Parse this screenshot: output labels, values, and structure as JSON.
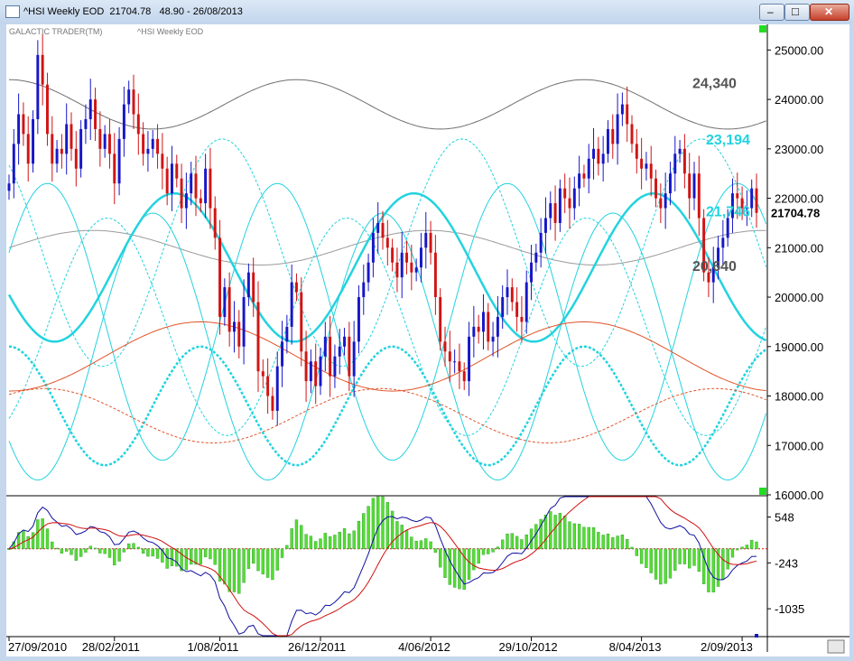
{
  "window": {
    "title": "^HSI Weekly EOD  21704.78   48.90 - 26/08/2013",
    "minimize_glyph": "–",
    "maximize_glyph": "□",
    "close_glyph": "✕"
  },
  "chart_data": {
    "type": "candlestick",
    "header": {
      "brand": "GALACTIC TRADER(TM)",
      "symbol": "^HSI Weekly EOD"
    },
    "last_price_label": "21704.78",
    "ylim": [
      16000,
      25500
    ],
    "yticks": [
      "25000.00",
      "24000.00",
      "23000.00",
      "22000.00",
      "21000.00",
      "20000.00",
      "19000.00",
      "18000.00",
      "17000.00",
      "16000.00"
    ],
    "ytick_values": [
      25000,
      24000,
      23000,
      22000,
      21000,
      20000,
      19000,
      18000,
      17000,
      16000
    ],
    "xticks": [
      "27/09/2010",
      "28/02/2011",
      "1/08/2011",
      "26/12/2011",
      "4/06/2012",
      "29/10/2012",
      "8/04/2013",
      "2/09/2013"
    ],
    "xtick_weeks": [
      0,
      22,
      44,
      65,
      88,
      109,
      132,
      153
    ],
    "annotations": [
      {
        "text": "24,340",
        "value": 24340,
        "color": "#555555"
      },
      {
        "text": "23,194",
        "value": 23194,
        "color": "#22d3de"
      },
      {
        "text": "21,746",
        "value": 21746,
        "color": "#22d3de"
      },
      {
        "text": "20,640",
        "value": 20640,
        "color": "#555555"
      }
    ],
    "closes": [
      22300,
      23100,
      23700,
      23300,
      22700,
      23600,
      24900,
      24300,
      23300,
      22700,
      23000,
      22900,
      23500,
      23000,
      22600,
      23400,
      23600,
      24000,
      23400,
      23000,
      23300,
      22900,
      22300,
      23200,
      23900,
      24200,
      23700,
      23300,
      22900,
      23000,
      23200,
      22900,
      22600,
      22100,
      22700,
      22400,
      21800,
      22100,
      22500,
      22000,
      21900,
      22600,
      21800,
      21200,
      19600,
      20200,
      19300,
      19500,
      19000,
      20000,
      20500,
      19900,
      18500,
      18400,
      18000,
      17700,
      18600,
      19100,
      19400,
      20300,
      20100,
      18900,
      18300,
      18700,
      18200,
      18800,
      19200,
      18400,
      18800,
      19000,
      19200,
      18400,
      19100,
      20000,
      20300,
      20700,
      21300,
      21500,
      21200,
      21000,
      20700,
      20400,
      20900,
      20700,
      20500,
      20600,
      21000,
      21300,
      20900,
      20000,
      19100,
      18900,
      18700,
      18700,
      18500,
      18300,
      19200,
      19400,
      19300,
      19700,
      19100,
      19200,
      19600,
      20000,
      20200,
      19900,
      19600,
      19500,
      20300,
      20700,
      20900,
      21300,
      21600,
      21900,
      21500,
      22200,
      22000,
      21800,
      22200,
      22500,
      22400,
      22800,
      23000,
      22700,
      22900,
      23400,
      23100,
      23700,
      23900,
      23500,
      23100,
      22800,
      22600,
      22700,
      22400,
      22000,
      21800,
      22100,
      22500,
      22900,
      23000,
      22500,
      22000,
      22500,
      21600,
      20500,
      20300,
      20600,
      21000,
      21200,
      21600,
      22100,
      22000,
      21800,
      21800,
      22200,
      21705
    ],
    "weeks_total": 157,
    "projection_lines": [
      {
        "style": "solid",
        "color": "#6f6f6f",
        "base": 23900,
        "amp": 500,
        "period": 60,
        "phase": 15
      },
      {
        "style": "solid",
        "color": "#9a9a9a",
        "base": 21000,
        "amp": 350,
        "period": 70,
        "phase": 0
      },
      {
        "style": "solid-bold",
        "color": "#22d3de",
        "base": 20600,
        "amp": 1500,
        "period": 50,
        "phase": 28
      },
      {
        "style": "solid",
        "color": "#22d3de",
        "base": 19500,
        "amp": 2800,
        "period": 48,
        "phase": 4
      },
      {
        "style": "solid",
        "color": "#22d3de",
        "base": 19000,
        "amp": 2700,
        "period": 48,
        "phase": 30
      },
      {
        "style": "dashed",
        "color": "#22d3de",
        "base": 20900,
        "amp": 2300,
        "period": 50,
        "phase": 18
      },
      {
        "style": "dashed",
        "color": "#22d3de",
        "base": 19400,
        "amp": 2200,
        "period": 50,
        "phase": 42
      },
      {
        "style": "dashed-bold",
        "color": "#22d3de",
        "base": 17800,
        "amp": 1200,
        "period": 40,
        "phase": 10
      },
      {
        "style": "solid",
        "color": "#e0552c",
        "base": 18800,
        "amp": 700,
        "period": 80,
        "phase": 60
      },
      {
        "style": "dashed",
        "color": "#e0552c",
        "base": 17600,
        "amp": 550,
        "period": 70,
        "phase": 10
      }
    ],
    "oscillator": {
      "ylim": [
        -1500,
        900
      ],
      "yticks": [
        "548",
        "-243",
        "-1035"
      ],
      "ytick_values": [
        548,
        -243,
        -1035
      ],
      "fast_color": "#1010a0",
      "slow_color": "#d01010",
      "hist_color": "#55dd33",
      "zero_line_color": "#d01010"
    }
  }
}
